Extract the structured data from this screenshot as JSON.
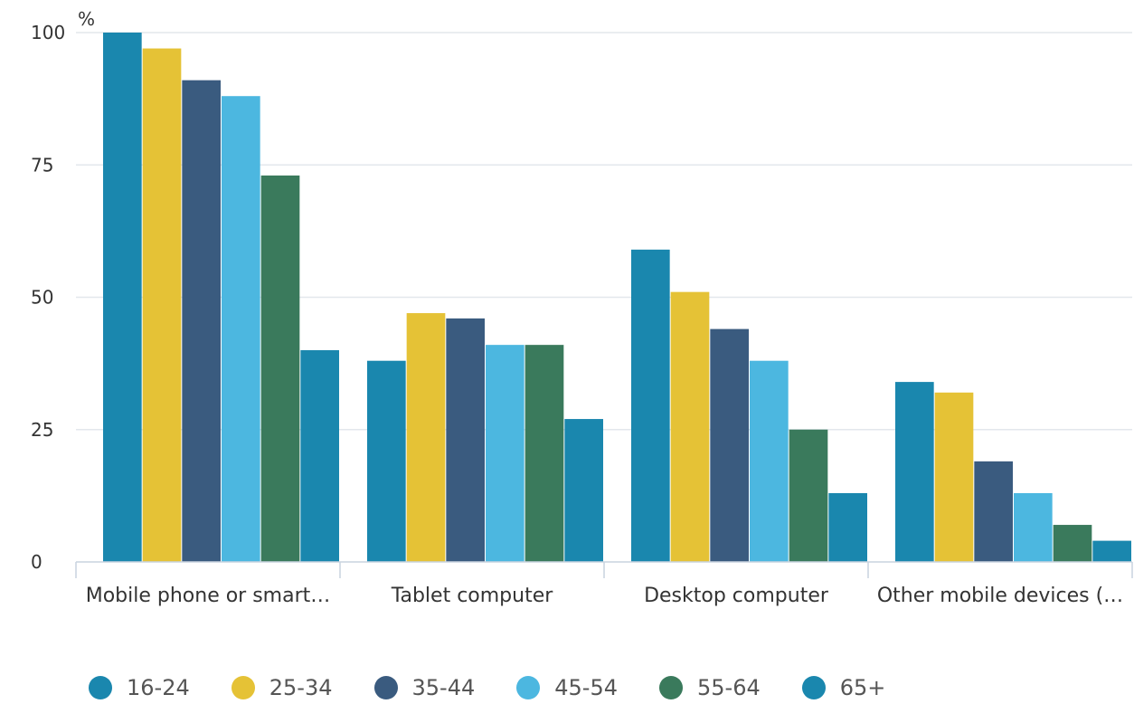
{
  "chart_data": {
    "type": "bar",
    "ylabel": "%",
    "ylim": [
      0,
      100
    ],
    "yticks": [
      "0",
      "25",
      "50",
      "75",
      "100"
    ],
    "grid": true,
    "legend_position": "bottom",
    "categories": [
      "Mobile phone or smart…",
      "Tablet computer",
      "Desktop computer",
      "Other mobile devices (…"
    ],
    "series": [
      {
        "name": "16-24",
        "color": "#1a87ae",
        "values": [
          100,
          38,
          59,
          34
        ]
      },
      {
        "name": "25-34",
        "color": "#e5c236",
        "values": [
          97,
          47,
          51,
          32
        ]
      },
      {
        "name": "35-44",
        "color": "#3a5b7f",
        "values": [
          91,
          46,
          44,
          19
        ]
      },
      {
        "name": "45-54",
        "color": "#4cb7e0",
        "values": [
          88,
          41,
          38,
          13
        ]
      },
      {
        "name": "55-64",
        "color": "#3a7a5c",
        "values": [
          73,
          41,
          25,
          7
        ]
      },
      {
        "name": "65+",
        "color": "#1a87ae",
        "values": [
          40,
          27,
          13,
          4
        ]
      }
    ]
  }
}
